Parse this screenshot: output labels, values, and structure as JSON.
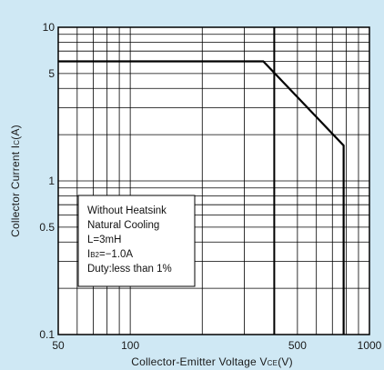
{
  "chart_data": {
    "type": "line",
    "xscale": "log",
    "yscale": "log",
    "xlim": [
      50,
      1000
    ],
    "ylim": [
      0.1,
      10
    ],
    "grid": true,
    "x_ticks": [
      {
        "value": 50,
        "label": "50"
      },
      {
        "value": 100,
        "label": "100"
      },
      {
        "value": 500,
        "label": "500"
      },
      {
        "value": 1000,
        "label": "1000"
      }
    ],
    "y_ticks": [
      {
        "value": 0.1,
        "label": "0.1"
      },
      {
        "value": 0.5,
        "label": "0.5"
      },
      {
        "value": 1,
        "label": "1"
      },
      {
        "value": 5,
        "label": "5"
      },
      {
        "value": 10,
        "label": "10"
      }
    ],
    "xlabel": {
      "main": "Collector-Emitter Voltage V",
      "sub": "CE",
      "unit": "(V)"
    },
    "ylabel": {
      "main": "Collector Current I",
      "sub": "C",
      "unit": "(A)"
    },
    "series": [
      {
        "name": "",
        "points": [
          {
            "x": 50,
            "y": 6
          },
          {
            "x": 360,
            "y": 6
          },
          {
            "x": 780,
            "y": 1.7
          },
          {
            "x": 780,
            "y": 0.1
          }
        ]
      }
    ],
    "reference_lines": [
      {
        "axis": "x",
        "value": 400
      }
    ],
    "annotation": {
      "lines": [
        {
          "text": "Without Heatsink"
        },
        {
          "text": "Natural Cooling"
        },
        {
          "text": "L=3mH"
        },
        {
          "text": "=−1.0A",
          "prefix": "I",
          "sub": "B2"
        },
        {
          "text": "Duty:less than 1%"
        }
      ]
    }
  }
}
